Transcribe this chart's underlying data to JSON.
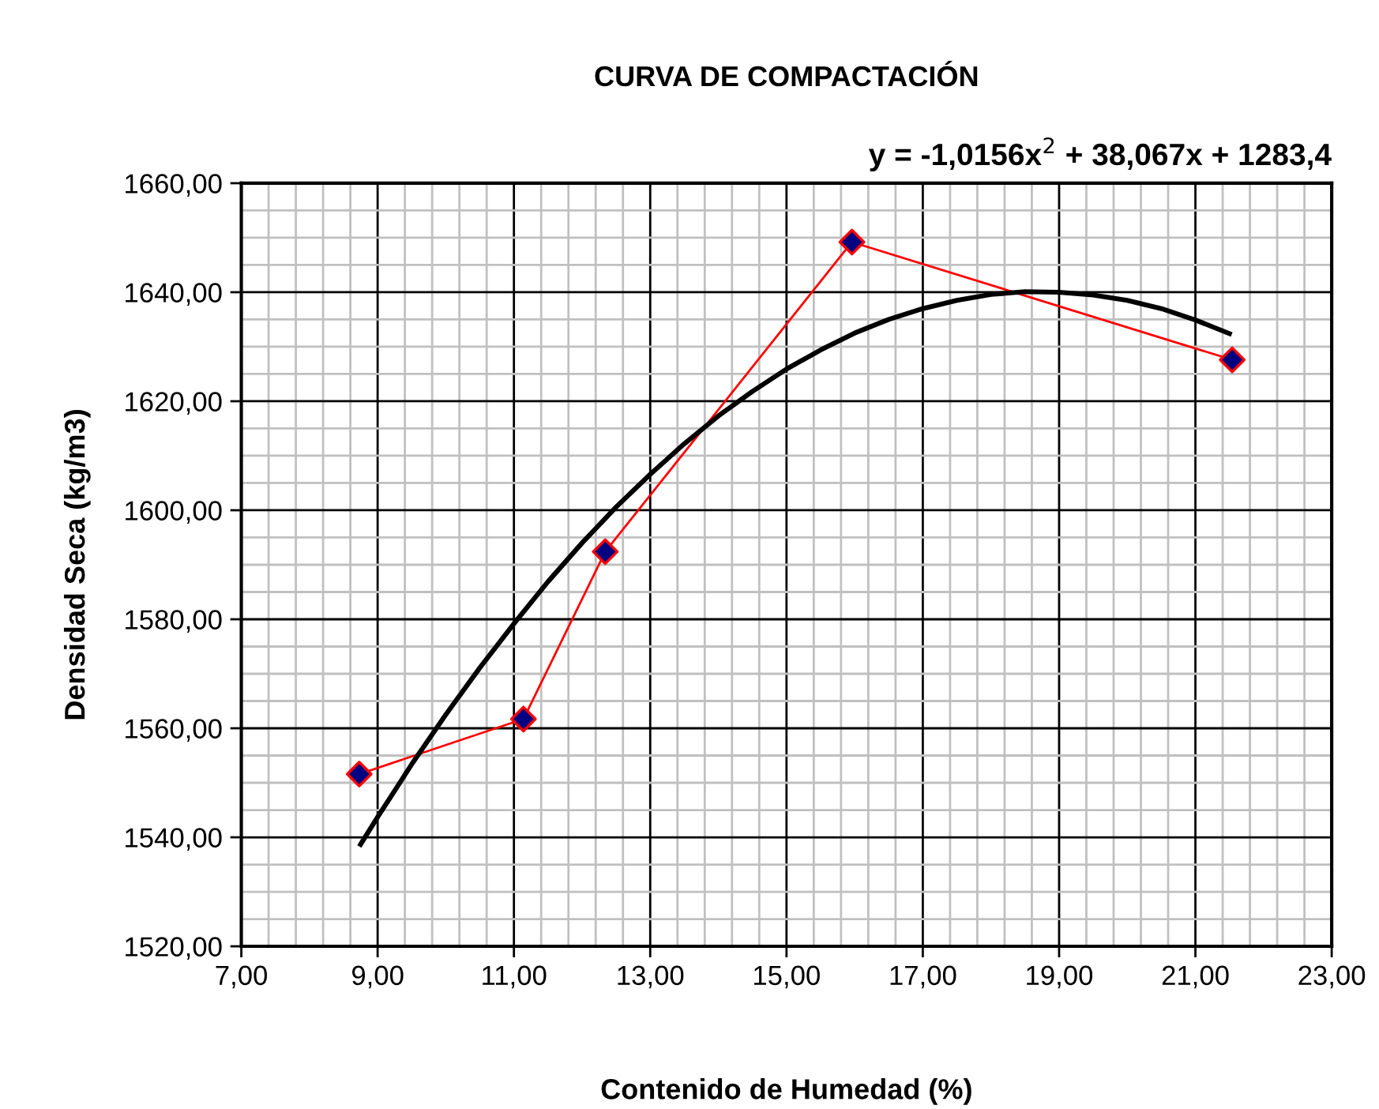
{
  "chart_data": {
    "type": "line",
    "title": "CURVA DE COMPACTACIÓN",
    "xlabel": "Contenido de Humedad (%)",
    "ylabel": "Densidad Seca (kg/m3)",
    "annotations": [
      "y = -1,0156x$^{2}$ + 38,067x + 1283,4"
    ],
    "series": [
      {
        "color": "#ff0000",
        "colors": [
          "#000080",
          "#000080",
          "#000080",
          "#000080",
          "#000080"
        ],
        "marker": "diamond",
        "x": [
          8.73,
          11.14,
          12.34,
          15.96,
          21.54
        ],
        "values": [
          1551.6,
          1561.7,
          1592.4,
          1649.2,
          1627.6
        ]
      },
      {
        "type": "line",
        "color": "#000000",
        "marker": "none",
        "x": [
          8.75,
          9,
          9.5,
          10,
          10.5,
          11,
          11.5,
          12,
          12.5,
          13,
          13.5,
          14,
          14.5,
          15,
          15.5,
          16,
          16.5,
          17,
          17.5,
          18,
          18.5,
          19,
          19.5,
          20,
          20.5,
          21,
          21.5
        ],
        "values": [
          1538.7,
          1543.7,
          1553.4,
          1562.5,
          1571.1,
          1579.2,
          1586.9,
          1594.0,
          1600.6,
          1606.6,
          1612.2,
          1617.3,
          1621.8,
          1625.9,
          1629.4,
          1632.5,
          1635.0,
          1637.0,
          1638.5,
          1639.6,
          1640.1,
          1640.0,
          1639.5,
          1638.5,
          1637.0,
          1634.9,
          1632.4
        ]
      }
    ],
    "xlim": [
      7,
      23
    ],
    "xticks": [
      {
        "value": 7,
        "label": "7,00"
      },
      {
        "value": 9,
        "label": "9,00"
      },
      {
        "value": 11,
        "label": "11,00"
      },
      {
        "value": 13,
        "label": "13,00"
      },
      {
        "value": 15,
        "label": "15,00"
      },
      {
        "value": 17,
        "label": "17,00"
      },
      {
        "value": 19,
        "label": "19,00"
      },
      {
        "value": 21,
        "label": "21,00"
      },
      {
        "value": 23,
        "label": "23,00"
      }
    ],
    "ylim": [
      1520,
      1660
    ],
    "yticks": [
      {
        "value": 1520,
        "label": "1520,00"
      },
      {
        "value": 1540,
        "label": "1540,00"
      },
      {
        "value": 1560,
        "label": "1560,00"
      },
      {
        "value": 1580,
        "label": "1580,00"
      },
      {
        "value": 1600,
        "label": "1600,00"
      },
      {
        "value": 1620,
        "label": "1620,00"
      },
      {
        "value": 1640,
        "label": "1640,00"
      },
      {
        "value": 1660,
        "label": "1660,00"
      }
    ],
    "grid": true,
    "legend": false
  }
}
